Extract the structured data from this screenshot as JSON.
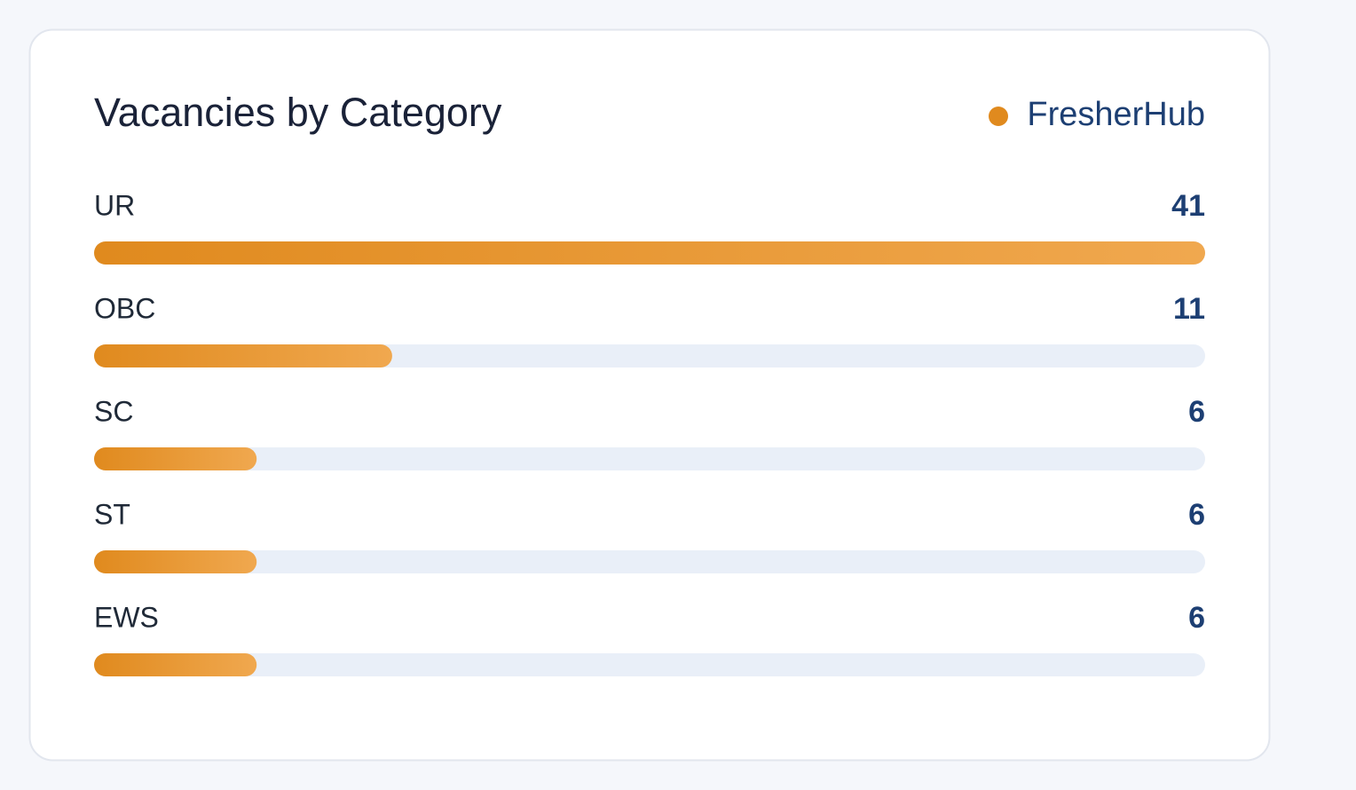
{
  "chart_data": {
    "type": "bar",
    "orientation": "horizontal",
    "title": "Vacancies by Category",
    "categories": [
      "UR",
      "OBC",
      "SC",
      "ST",
      "EWS"
    ],
    "series": [
      {
        "name": "FresherHub",
        "color": "#e08a1e",
        "values": [
          41,
          11,
          6,
          6,
          6
        ]
      }
    ]
  }
}
